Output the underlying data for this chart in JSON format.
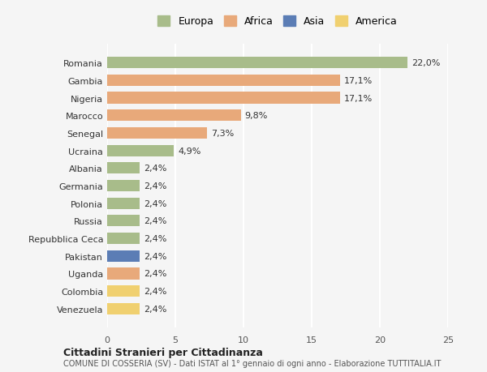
{
  "categories": [
    "Venezuela",
    "Colombia",
    "Uganda",
    "Pakistan",
    "Repubblica Ceca",
    "Russia",
    "Polonia",
    "Germania",
    "Albania",
    "Ucraina",
    "Senegal",
    "Marocco",
    "Nigeria",
    "Gambia",
    "Romania"
  ],
  "values": [
    2.4,
    2.4,
    2.4,
    2.4,
    2.4,
    2.4,
    2.4,
    2.4,
    2.4,
    4.9,
    7.3,
    9.8,
    17.1,
    17.1,
    22.0
  ],
  "continents": [
    "America",
    "America",
    "Africa",
    "Asia",
    "Europa",
    "Europa",
    "Europa",
    "Europa",
    "Europa",
    "Europa",
    "Africa",
    "Africa",
    "Africa",
    "Africa",
    "Europa"
  ],
  "colors": {
    "Europa": "#a8bc8a",
    "Africa": "#e8a97a",
    "Asia": "#5b7db5",
    "America": "#f0d070"
  },
  "legend_order": [
    "Europa",
    "Africa",
    "Asia",
    "America"
  ],
  "labels": [
    "2,4%",
    "2,4%",
    "2,4%",
    "2,4%",
    "2,4%",
    "2,4%",
    "2,4%",
    "2,4%",
    "2,4%",
    "4,9%",
    "7,3%",
    "9,8%",
    "17,1%",
    "17,1%",
    "22,0%"
  ],
  "xlim": [
    0,
    25
  ],
  "xticks": [
    0,
    5,
    10,
    15,
    20,
    25
  ],
  "title": "Cittadini Stranieri per Cittadinanza",
  "subtitle": "COMUNE DI COSSERIA (SV) - Dati ISTAT al 1° gennaio di ogni anno - Elaborazione TUTTITALIA.IT",
  "background_color": "#f5f5f5",
  "grid_color": "#ffffff",
  "bar_height": 0.65
}
